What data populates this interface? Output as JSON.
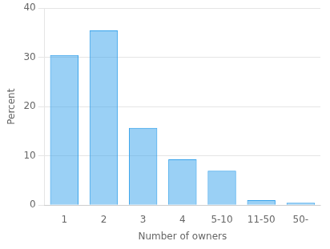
{
  "chart_data": {
    "type": "bar",
    "categories": [
      "1",
      "2",
      "3",
      "4",
      "5-10",
      "11-50",
      "50-"
    ],
    "values": [
      30.5,
      35.5,
      15.7,
      9.3,
      7.0,
      1.0,
      0.5
    ],
    "xlabel": "Number of owners",
    "ylabel": "Percent",
    "ylim": [
      0,
      40
    ],
    "yticks": [
      0,
      10,
      20,
      30,
      40
    ],
    "grid": true
  }
}
